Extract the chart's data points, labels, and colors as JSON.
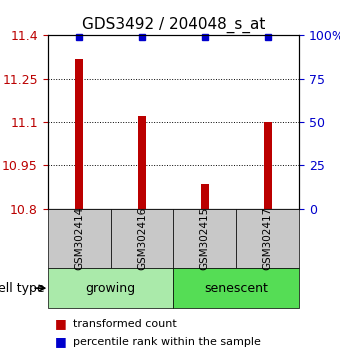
{
  "title": "GDS3492 / 204048_s_at",
  "samples": [
    "GSM302414",
    "GSM302416",
    "GSM302415",
    "GSM302417"
  ],
  "bar_values": [
    11.32,
    11.12,
    10.885,
    11.1
  ],
  "percentile_values": [
    99,
    99,
    99,
    99
  ],
  "bar_color": "#bb0000",
  "percentile_color": "#0000cc",
  "ylim_left": [
    10.8,
    11.4
  ],
  "ylim_right": [
    0,
    100
  ],
  "yticks_left": [
    10.8,
    10.95,
    11.1,
    11.25,
    11.4
  ],
  "yticks_right": [
    0,
    25,
    50,
    75,
    100
  ],
  "ytick_labels_right": [
    "0",
    "25",
    "50",
    "75",
    "100%"
  ],
  "grid_ticks": [
    10.95,
    11.1,
    11.25
  ],
  "groups": [
    {
      "label": "growing",
      "indices": [
        0,
        1
      ],
      "color": "#aaeaaa"
    },
    {
      "label": "senescent",
      "indices": [
        2,
        3
      ],
      "color": "#55dd55"
    }
  ],
  "group_label": "cell type",
  "legend": [
    {
      "color": "#bb0000",
      "label": "transformed count"
    },
    {
      "color": "#0000cc",
      "label": "percentile rank within the sample"
    }
  ],
  "bar_width": 0.12,
  "label_area_color": "#c8c8c8",
  "title_fontsize": 11,
  "tick_fontsize": 9,
  "sample_fontsize": 7.5,
  "group_fontsize": 9,
  "legend_fontsize": 8
}
